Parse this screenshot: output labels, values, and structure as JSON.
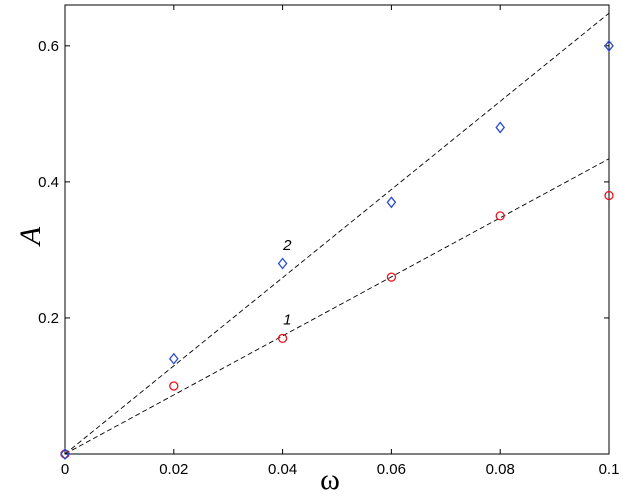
{
  "chart_data": {
    "type": "scatter",
    "title": "",
    "xlabel": "ω",
    "ylabel": "A",
    "xlim": [
      0,
      0.1
    ],
    "ylim": [
      0,
      0.66
    ],
    "grid": false,
    "x_ticks": [
      0,
      0.02,
      0.04,
      0.06,
      0.08,
      0.1
    ],
    "x_tick_labels": [
      "0",
      "0.02",
      "0.04",
      "0.06",
      "0.08",
      "0.1"
    ],
    "y_ticks": [
      0.2,
      0.4,
      0.6
    ],
    "y_tick_labels": [
      "0.2",
      "0.4",
      "0.6"
    ],
    "series": [
      {
        "label": "1",
        "marker": "circle",
        "color": "#e8141b",
        "x": [
          0,
          0.02,
          0.04,
          0.06,
          0.08,
          0.1
        ],
        "y": [
          0,
          0.1,
          0.17,
          0.26,
          0.35,
          0.38
        ],
        "fit_line": {
          "x": [
            0,
            0.1
          ],
          "y": [
            0,
            0.434
          ]
        }
      },
      {
        "label": "2",
        "marker": "diamond",
        "color": "#2a4bd7",
        "x": [
          0,
          0.02,
          0.04,
          0.06,
          0.08,
          0.1
        ],
        "y": [
          0,
          0.14,
          0.28,
          0.37,
          0.48,
          0.6
        ],
        "fit_line": {
          "x": [
            0,
            0.1
          ],
          "y": [
            0,
            0.648
          ]
        }
      }
    ],
    "curve_labels": [
      {
        "text": "1",
        "x": 0.0405,
        "y": 0.19
      },
      {
        "text": "2",
        "x": 0.0405,
        "y": 0.3
      }
    ]
  }
}
